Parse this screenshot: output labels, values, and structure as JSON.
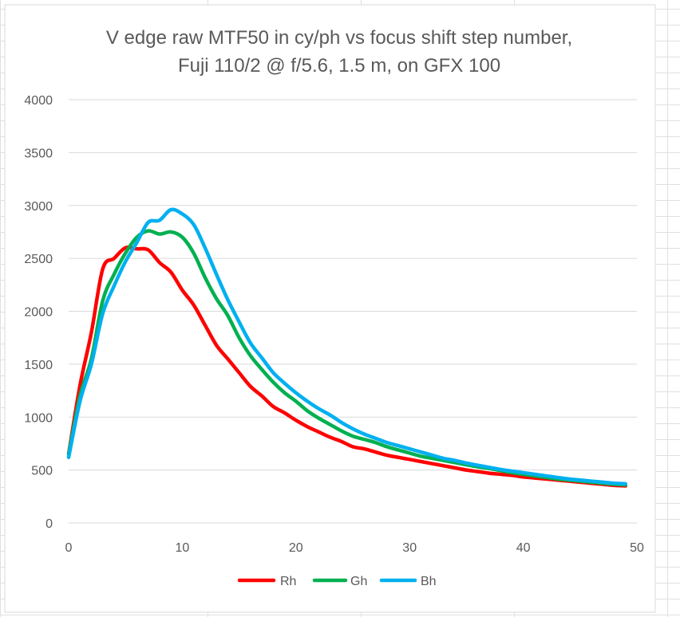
{
  "chart_data": {
    "type": "line",
    "title_lines": [
      "V edge raw MTF50 in cy/ph vs focus shift step number,",
      "Fuji 110/2 @ f/5.6, 1.5 m, on GFX 100"
    ],
    "xlabel": "",
    "ylabel": "",
    "xlim": [
      0,
      50
    ],
    "ylim": [
      0,
      4000
    ],
    "x_ticks": [
      0,
      10,
      20,
      30,
      40,
      50
    ],
    "y_ticks": [
      0,
      500,
      1000,
      1500,
      2000,
      2500,
      3000,
      3500,
      4000
    ],
    "grid": "horizontal",
    "legend_position": "bottom",
    "series": [
      {
        "name": "Rh",
        "color": "#ff0000",
        "x": [
          0,
          1,
          2,
          3,
          4,
          5,
          6,
          7,
          8,
          9,
          10,
          11,
          12,
          13,
          14,
          15,
          16,
          17,
          18,
          19,
          20,
          21,
          22,
          23,
          24,
          25,
          26,
          27,
          28,
          29,
          30,
          31,
          32,
          33,
          34,
          35,
          36,
          37,
          38,
          39,
          40,
          41,
          42,
          43,
          44,
          45,
          46,
          47,
          48,
          49
        ],
        "y": [
          650,
          1300,
          1800,
          2400,
          2500,
          2600,
          2590,
          2580,
          2460,
          2370,
          2200,
          2060,
          1870,
          1680,
          1550,
          1420,
          1290,
          1200,
          1100,
          1040,
          970,
          910,
          860,
          810,
          770,
          720,
          700,
          670,
          640,
          620,
          600,
          580,
          560,
          540,
          520,
          500,
          485,
          470,
          460,
          450,
          435,
          425,
          415,
          405,
          395,
          385,
          375,
          365,
          355,
          350
        ]
      },
      {
        "name": "Gh",
        "color": "#00b050",
        "x": [
          0,
          1,
          2,
          3,
          4,
          5,
          6,
          7,
          8,
          9,
          10,
          11,
          12,
          13,
          14,
          15,
          16,
          17,
          18,
          19,
          20,
          21,
          22,
          23,
          24,
          25,
          26,
          27,
          28,
          29,
          30,
          31,
          32,
          33,
          34,
          35,
          36,
          37,
          38,
          39,
          40,
          41,
          42,
          43,
          44,
          45,
          46,
          47,
          48,
          49
        ],
        "y": [
          650,
          1200,
          1550,
          2100,
          2350,
          2550,
          2700,
          2760,
          2730,
          2750,
          2700,
          2550,
          2320,
          2120,
          1960,
          1750,
          1580,
          1450,
          1330,
          1230,
          1150,
          1060,
          990,
          930,
          870,
          820,
          790,
          760,
          720,
          690,
          660,
          630,
          610,
          590,
          570,
          550,
          530,
          515,
          495,
          475,
          460,
          445,
          430,
          415,
          405,
          395,
          385,
          375,
          365,
          360
        ]
      },
      {
        "name": "Bh",
        "color": "#00b0f0",
        "x": [
          0,
          1,
          2,
          3,
          4,
          5,
          6,
          7,
          8,
          9,
          10,
          11,
          12,
          13,
          14,
          15,
          16,
          17,
          18,
          19,
          20,
          21,
          22,
          23,
          24,
          25,
          26,
          27,
          28,
          29,
          30,
          31,
          32,
          33,
          34,
          35,
          36,
          37,
          38,
          39,
          40,
          41,
          42,
          43,
          44,
          45,
          46,
          47,
          48,
          49
        ],
        "y": [
          620,
          1150,
          1500,
          1980,
          2240,
          2470,
          2650,
          2840,
          2860,
          2960,
          2920,
          2820,
          2600,
          2350,
          2110,
          1900,
          1700,
          1560,
          1420,
          1320,
          1230,
          1150,
          1080,
          1020,
          950,
          890,
          840,
          800,
          760,
          730,
          700,
          670,
          640,
          610,
          590,
          565,
          545,
          525,
          505,
          490,
          475,
          460,
          445,
          430,
          415,
          405,
          395,
          385,
          375,
          370
        ]
      }
    ]
  }
}
